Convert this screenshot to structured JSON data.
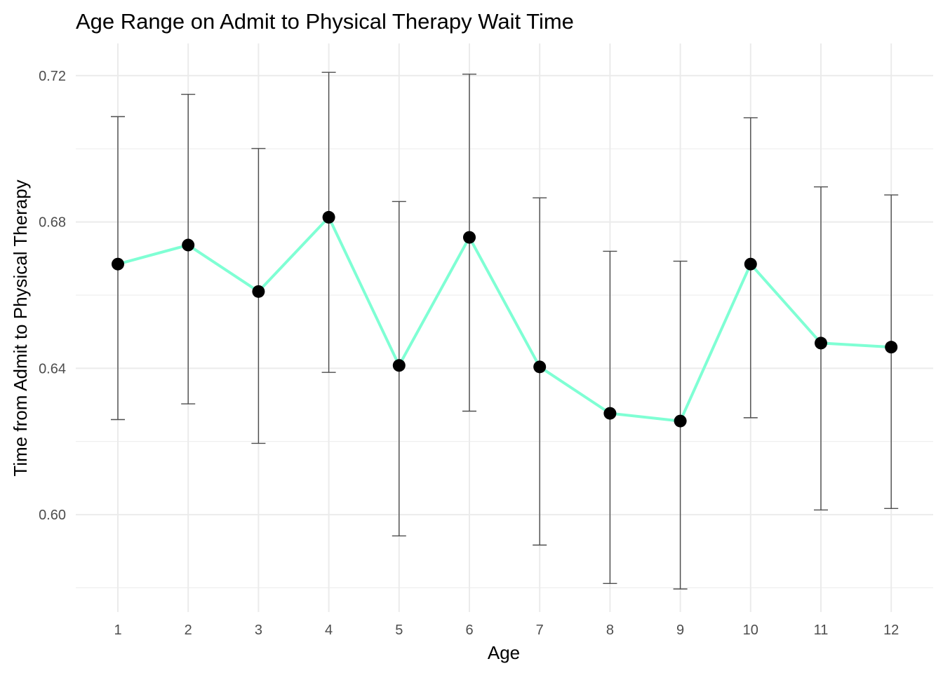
{
  "chart_data": {
    "type": "line",
    "title": "Age Range on Admit to Physical Therapy Wait Time",
    "xlabel": "Age",
    "ylabel": "Time from Admit to Physical Therapy",
    "categories": [
      "1",
      "2",
      "3",
      "4",
      "5",
      "6",
      "7",
      "8",
      "9",
      "10",
      "11",
      "12"
    ],
    "values": [
      0.6685,
      0.6737,
      0.661,
      0.6813,
      0.6408,
      0.6758,
      0.6404,
      0.6277,
      0.6256,
      0.6685,
      0.6469,
      0.6458
    ],
    "error_low": [
      0.626,
      0.6303,
      0.6195,
      0.6389,
      0.5942,
      0.6283,
      0.5917,
      0.5812,
      0.5797,
      0.6265,
      0.6013,
      0.6017
    ],
    "error_high": [
      0.7088,
      0.7149,
      0.7001,
      0.7209,
      0.6856,
      0.7204,
      0.6866,
      0.672,
      0.6693,
      0.7085,
      0.6896,
      0.6874
    ],
    "ylim": [
      0.5734,
      0.7288
    ],
    "yticks": [
      "0.60",
      "0.64",
      "0.68",
      "0.72"
    ],
    "ytick_values": [
      0.6,
      0.64,
      0.68,
      0.72
    ],
    "grid": true,
    "line_color": "#7fffd4",
    "point_color": "#000000",
    "errorbar_color": "#4d4d4d"
  }
}
